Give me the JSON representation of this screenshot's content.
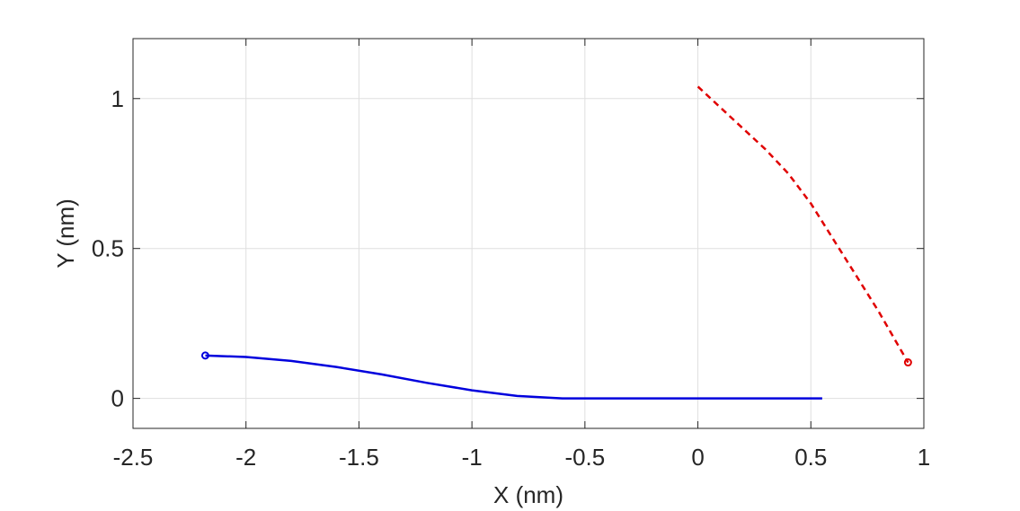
{
  "chart_data": {
    "type": "line",
    "title": "",
    "xlabel": "X (nm)",
    "ylabel": "Y (nm)",
    "xlim": [
      -2.5,
      1
    ],
    "ylim": [
      -0.1,
      1.2
    ],
    "grid": true,
    "xticks": [
      {
        "value": -2.5,
        "label": "-2.5"
      },
      {
        "value": -2,
        "label": "-2"
      },
      {
        "value": -1.5,
        "label": "-1.5"
      },
      {
        "value": -1,
        "label": "-1"
      },
      {
        "value": -0.5,
        "label": "-0.5"
      },
      {
        "value": 0,
        "label": "0"
      },
      {
        "value": 0.5,
        "label": "0.5"
      },
      {
        "value": 1,
        "label": "1"
      }
    ],
    "yticks": [
      {
        "value": 0,
        "label": "0"
      },
      {
        "value": 0.5,
        "label": "0.5"
      },
      {
        "value": 1,
        "label": "1"
      }
    ],
    "series": [
      {
        "color": "#0000dd",
        "style": "solid",
        "marker_at_start": true,
        "x": [
          -2.18,
          -2.0,
          -1.8,
          -1.6,
          -1.4,
          -1.2,
          -1.0,
          -0.8,
          -0.6,
          -0.4,
          -0.2,
          0.0,
          0.2,
          0.4,
          0.55
        ],
        "y": [
          0.143,
          0.138,
          0.125,
          0.105,
          0.08,
          0.052,
          0.027,
          0.008,
          0.0,
          0.0,
          0.0,
          0.0,
          0.0,
          0.0,
          0.0
        ]
      },
      {
        "color": "#e00000",
        "style": "dashed",
        "marker_at_end": true,
        "x": [
          0.0,
          0.1,
          0.2,
          0.3,
          0.4,
          0.5,
          0.6,
          0.7,
          0.8,
          0.93
        ],
        "y": [
          1.04,
          0.97,
          0.9,
          0.83,
          0.75,
          0.65,
          0.53,
          0.41,
          0.29,
          0.12
        ]
      }
    ]
  }
}
